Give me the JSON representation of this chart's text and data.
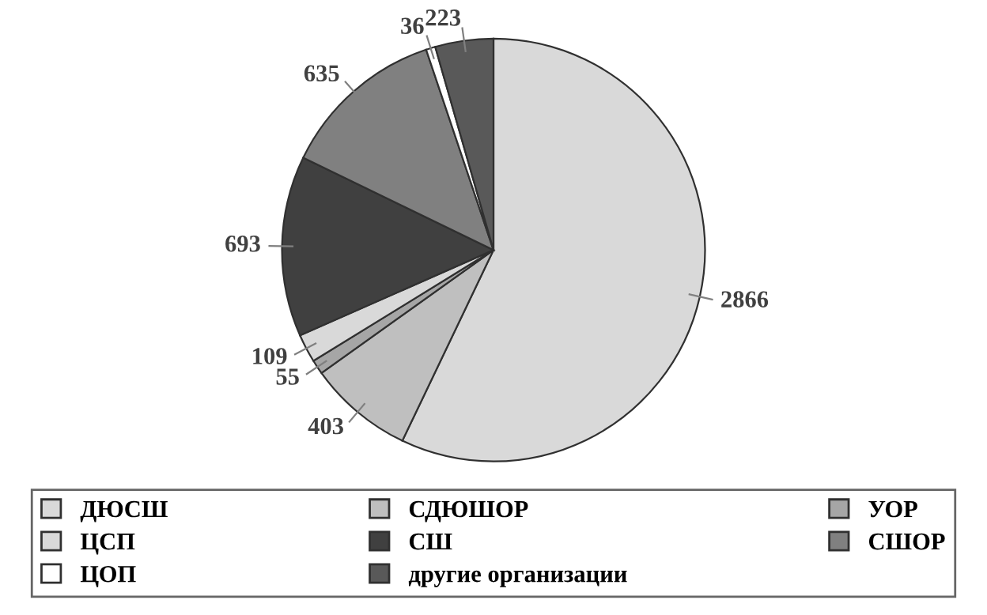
{
  "chart_data": {
    "type": "pie",
    "categories": [
      "ДЮСШ",
      "СДЮШОР",
      "УОР",
      "ЦСП",
      "СШ",
      "СШОР",
      "ЦОП",
      "другие организации"
    ],
    "values": [
      2866,
      403,
      55,
      109,
      693,
      635,
      36,
      223
    ],
    "colors": [
      "#d9d9d9",
      "#bfbfbf",
      "#a6a6a6",
      "#d9d9d9",
      "#404040",
      "#808080",
      "#ffffff",
      "#595959"
    ],
    "data_labels": true,
    "legend": "bottom"
  }
}
